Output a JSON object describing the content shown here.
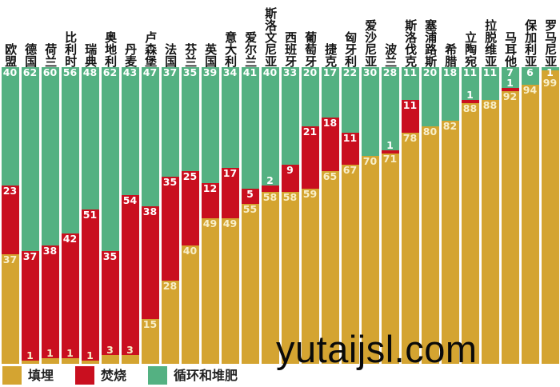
{
  "watermark": "yutaijsl.com",
  "colors": {
    "recycle_green": "#54b182",
    "incinerate_red": "#c90f1f",
    "landfill_gold": "#d4a431",
    "label_on_dark": "#ffffff",
    "label_on_gold": "#f8efc9",
    "country_label": "#141414",
    "background": "#ffffff"
  },
  "legend": {
    "items": [
      {
        "label": "填埋",
        "color": "#d4a431"
      },
      {
        "label": "焚烧",
        "color": "#c90f1f"
      },
      {
        "label": "循环和堆肥",
        "color": "#54b182"
      }
    ]
  },
  "chart_data": {
    "type": "bar",
    "stacked": true,
    "unit": "percent",
    "ylim": [
      0,
      100
    ],
    "grid": false,
    "legend_position": "bottom",
    "stack_order_top_to_bottom": [
      "循环和堆肥",
      "焚烧",
      "填埋"
    ],
    "categories": [
      "欧盟",
      "德国",
      "荷兰",
      "比利时",
      "瑞典",
      "奥地利",
      "丹麦",
      "卢森堡",
      "法国",
      "芬兰",
      "英国",
      "意大利",
      "爱尔兰",
      "斯洛文尼亚",
      "西班牙",
      "葡萄牙",
      "捷克",
      "匈牙利",
      "爱沙尼亚",
      "波兰",
      "斯洛伐克",
      "塞浦路斯",
      "希腊",
      "立陶宛",
      "拉脱维亚",
      "马耳他",
      "保加利亚",
      "罗马尼亚"
    ],
    "series": [
      {
        "name": "循环和堆肥",
        "key": "recycle",
        "color": "#54b182",
        "label_color": "#ffffff",
        "values": [
          40,
          62,
          60,
          56,
          48,
          62,
          43,
          47,
          37,
          35,
          39,
          34,
          41,
          40,
          33,
          20,
          17,
          22,
          30,
          28,
          11,
          20,
          18,
          11,
          11,
          7,
          6,
          1
        ]
      },
      {
        "name": "焚烧",
        "key": "incinerate",
        "color": "#c90f1f",
        "label_color": "#ffffff",
        "values": [
          23,
          37,
          38,
          42,
          51,
          35,
          54,
          38,
          35,
          25,
          12,
          17,
          5,
          2,
          9,
          21,
          18,
          11,
          0,
          1,
          11,
          0,
          0,
          1,
          0,
          1,
          0,
          0
        ]
      },
      {
        "name": "填埋",
        "key": "landfill",
        "color": "#d4a431",
        "label_color": "#f8efc9",
        "values": [
          37,
          1,
          1,
          1,
          1,
          3,
          3,
          15,
          28,
          40,
          49,
          49,
          55,
          58,
          58,
          59,
          65,
          67,
          70,
          71,
          78,
          80,
          82,
          88,
          88,
          92,
          94,
          99
        ]
      }
    ]
  }
}
